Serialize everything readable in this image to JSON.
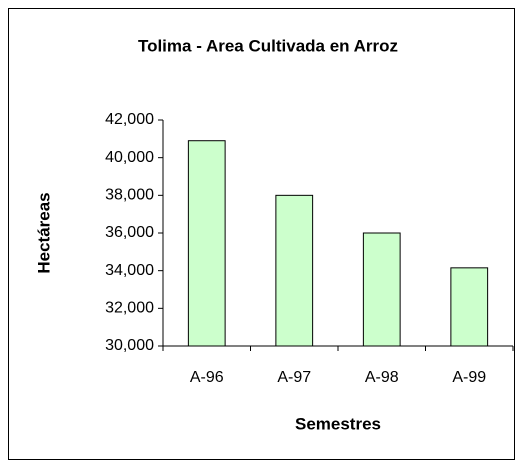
{
  "chart_data": {
    "type": "bar",
    "title": "Tolima - Area Cultivada en Arroz",
    "x_label": "Semestres",
    "y_label": "Hectáreas",
    "categories": [
      "A-96",
      "A-97",
      "A-98",
      "A-99"
    ],
    "values": [
      40900,
      38000,
      36000,
      34150
    ],
    "color": "#ccffcc",
    "ylim": [
      30000,
      42000
    ],
    "yticks": [
      {
        "value": 30000,
        "label": "30,000"
      },
      {
        "value": 32000,
        "label": "32,000"
      },
      {
        "value": 34000,
        "label": "34,000"
      },
      {
        "value": 36000,
        "label": "36,000"
      },
      {
        "value": 38000,
        "label": "38,000"
      },
      {
        "value": 40000,
        "label": "40,000"
      },
      {
        "value": 42000,
        "label": "42,000"
      }
    ],
    "grid": false
  }
}
